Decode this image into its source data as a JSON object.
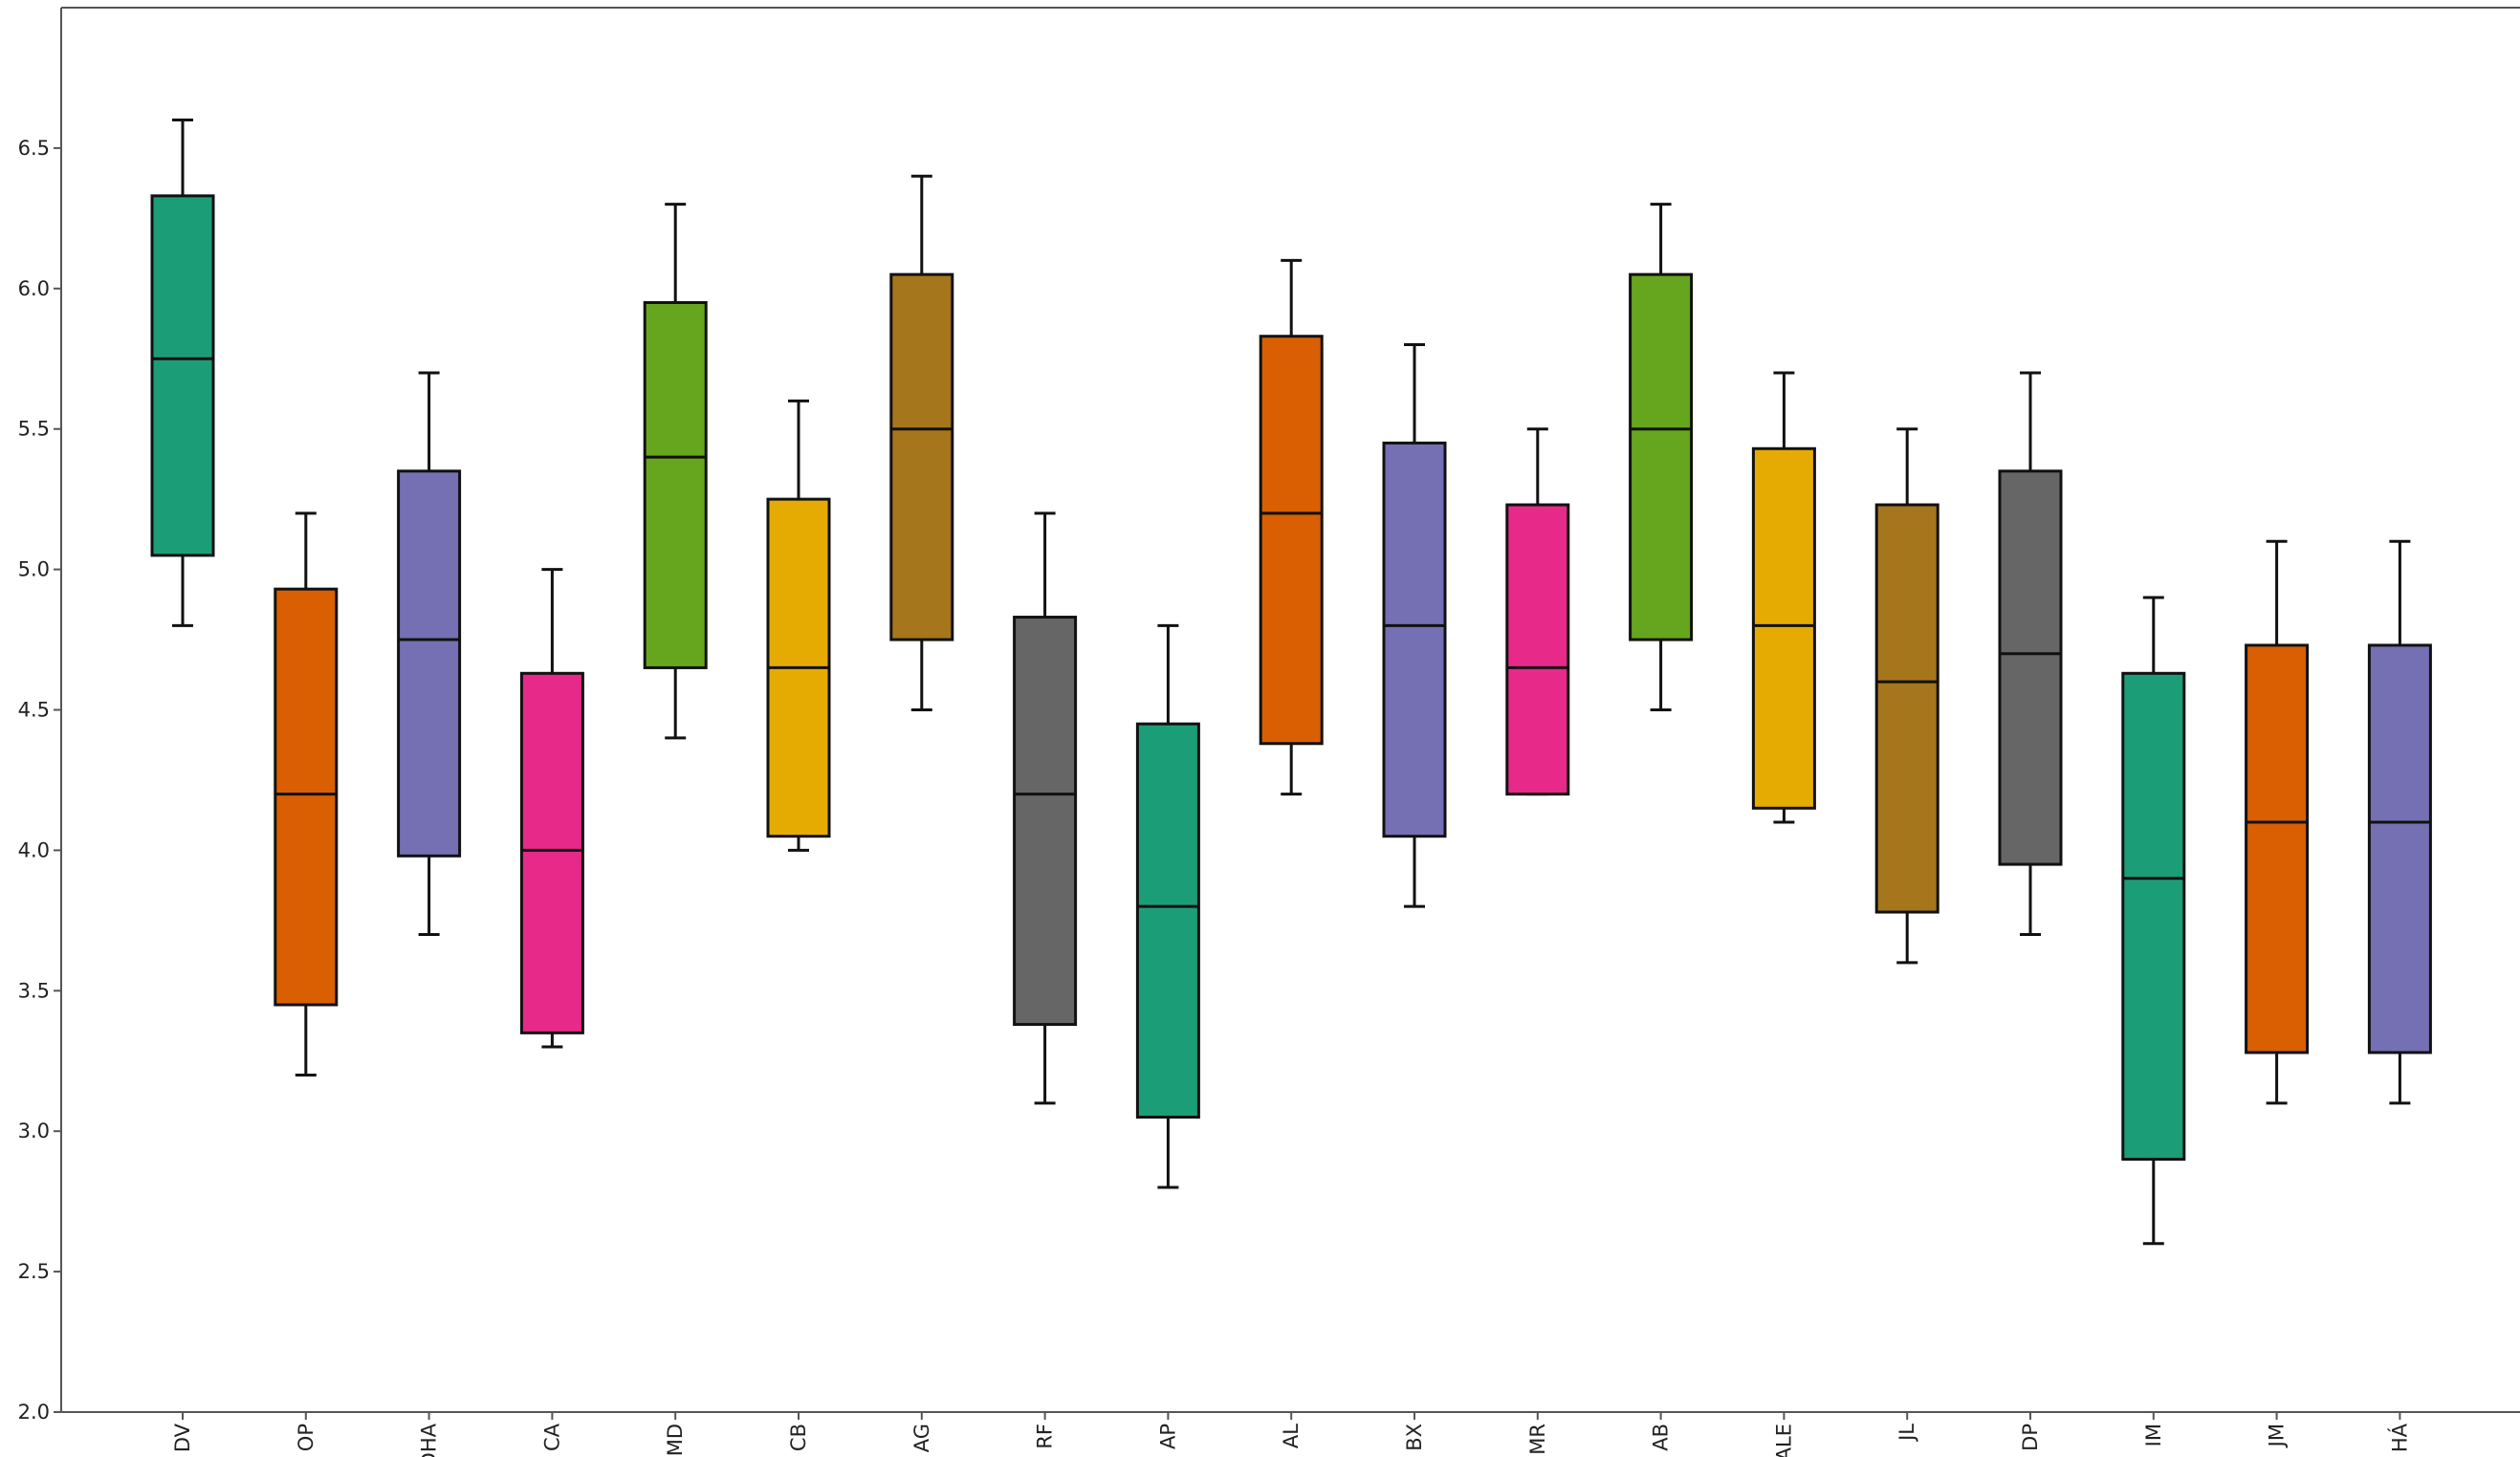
{
  "chart_data": {
    "type": "boxplot",
    "title": "",
    "xlabel": "",
    "ylabel": "",
    "ylim": [
      2.0,
      7.0
    ],
    "y_ticks": [
      "2.0",
      "2.5",
      "3.0",
      "3.5",
      "4.0",
      "4.5",
      "5.0",
      "5.5",
      "6.0",
      "6.5"
    ],
    "grid": false,
    "legend": "none",
    "categories": [
      "DV",
      "OP",
      "DHA",
      "CA",
      "MD",
      "CB",
      "AG",
      "RF",
      "AP",
      "AL",
      "BX",
      "MR",
      "AB",
      "ALE",
      "JL",
      "DP",
      "IM",
      "JM",
      "HÁ"
    ],
    "boxes": [
      {
        "min": 4.8,
        "q1": 5.05,
        "median": 5.75,
        "q3": 6.33,
        "max": 6.6,
        "color": "#1b9e77"
      },
      {
        "min": 3.2,
        "q1": 3.45,
        "median": 4.2,
        "q3": 4.93,
        "max": 5.2,
        "color": "#d95f02"
      },
      {
        "min": 3.7,
        "q1": 3.98,
        "median": 4.75,
        "q3": 5.35,
        "max": 5.7,
        "color": "#7570b3"
      },
      {
        "min": 3.3,
        "q1": 3.35,
        "median": 4.0,
        "q3": 4.63,
        "max": 5.0,
        "color": "#e7298a"
      },
      {
        "min": 4.4,
        "q1": 4.65,
        "median": 5.4,
        "q3": 5.95,
        "max": 6.3,
        "color": "#66a61e"
      },
      {
        "min": 4.0,
        "q1": 4.05,
        "median": 4.65,
        "q3": 5.25,
        "max": 5.6,
        "color": "#e6ab02"
      },
      {
        "min": 4.5,
        "q1": 4.75,
        "median": 5.5,
        "q3": 6.05,
        "max": 6.4,
        "color": "#a6761d"
      },
      {
        "min": 3.1,
        "q1": 3.38,
        "median": 4.2,
        "q3": 4.83,
        "max": 5.2,
        "color": "#666666"
      },
      {
        "min": 2.8,
        "q1": 3.05,
        "median": 3.8,
        "q3": 4.45,
        "max": 4.8,
        "color": "#1b9e77"
      },
      {
        "min": 4.2,
        "q1": 4.38,
        "median": 5.2,
        "q3": 5.83,
        "max": 6.1,
        "color": "#d95f02"
      },
      {
        "min": 3.8,
        "q1": 4.05,
        "median": 4.8,
        "q3": 5.45,
        "max": 5.8,
        "color": "#7570b3"
      },
      {
        "min": 4.2,
        "q1": 4.2,
        "median": 4.65,
        "q3": 5.23,
        "max": 5.5,
        "color": "#e7298a"
      },
      {
        "min": 4.5,
        "q1": 4.75,
        "median": 5.5,
        "q3": 6.05,
        "max": 6.3,
        "color": "#66a61e"
      },
      {
        "min": 4.1,
        "q1": 4.15,
        "median": 4.8,
        "q3": 5.43,
        "max": 5.7,
        "color": "#e6ab02"
      },
      {
        "min": 3.6,
        "q1": 3.78,
        "median": 4.6,
        "q3": 5.23,
        "max": 5.5,
        "color": "#a6761d"
      },
      {
        "min": 3.7,
        "q1": 3.95,
        "median": 4.7,
        "q3": 5.35,
        "max": 5.7,
        "color": "#666666"
      },
      {
        "min": 2.6,
        "q1": 2.9,
        "median": 3.9,
        "q3": 4.63,
        "max": 4.9,
        "color": "#1b9e77"
      },
      {
        "min": 3.1,
        "q1": 3.28,
        "median": 4.1,
        "q3": 4.73,
        "max": 5.1,
        "color": "#d95f02"
      },
      {
        "min": 3.1,
        "q1": 3.28,
        "median": 4.1,
        "q3": 4.73,
        "max": 5.1,
        "color": "#7570b3"
      }
    ]
  }
}
